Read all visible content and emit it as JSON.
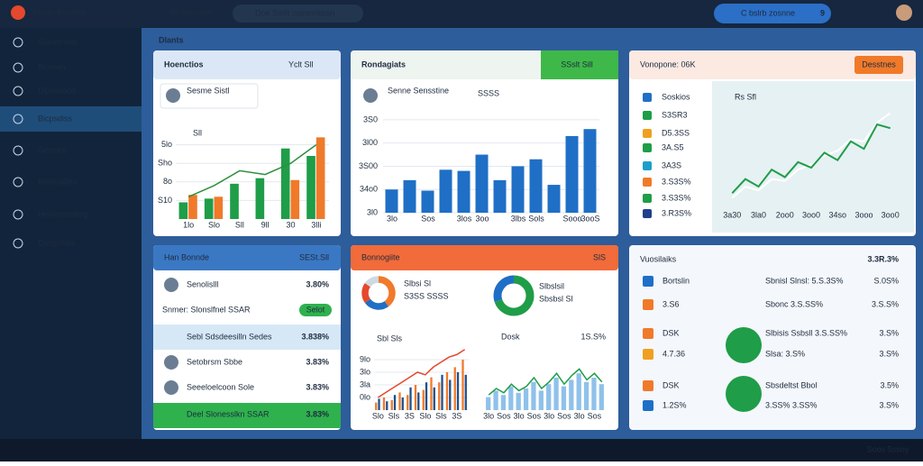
{
  "sidebar": {
    "brand": "Elsnn Bnsiics",
    "items": [
      "Slonomiuis",
      "Blornen",
      "Dipesiiood",
      "Bicpsdiss",
      "Sesnice",
      "Bosnsidies",
      "Heriassentiog",
      "Dsngstidis"
    ]
  },
  "topbar": {
    "title": "Rlomongje:",
    "search": "Doe Slbilt nsesnntsisn",
    "user": "C bslrb zosnne",
    "badge": "9"
  },
  "section": "Dlants",
  "panels": [
    {
      "title": "Hoenctios",
      "action": "Yclt Sll",
      "profile": "Sesme Sistl",
      "badge": "Sll",
      "chart": {
        "ylim": [
          0,
          50
        ],
        "yticks": [
          {
            "value": 40,
            "label": "5lo"
          },
          {
            "value": 30,
            "label": "Sho"
          },
          {
            "value": 20,
            "label": "8o"
          },
          {
            "value": 10,
            "label": "S10"
          }
        ],
        "categories": [
          "1lo",
          "Slo",
          "Sll",
          "9ll",
          "30",
          "3lli"
        ],
        "series": [
          {
            "color": "#1f9d48",
            "values": [
              9,
              11,
              19,
              22,
              38,
              34
            ]
          },
          {
            "color": "#f07a2a",
            "values": [
              13,
              12,
              null,
              null,
              21,
              44
            ]
          }
        ],
        "line": {
          "color": "#2f8f3e",
          "values": [
            12,
            18,
            26,
            24,
            30,
            40
          ]
        }
      }
    },
    {
      "title": "Rondagiats",
      "action": "SSslt Sill",
      "profile": "Senne Sensstine",
      "badge": "SSSS",
      "chart": {
        "ylim": [
          0,
          450
        ],
        "yticks": [
          {
            "value": 400,
            "label": "3S0"
          },
          {
            "value": 300,
            "label": "3l00"
          },
          {
            "value": 200,
            "label": "3S00"
          },
          {
            "value": 100,
            "label": "34o0"
          },
          {
            "value": 0,
            "label": "3l0"
          }
        ],
        "categories": [
          "3lo",
          null,
          "Sos",
          null,
          "3los",
          "3oo",
          null,
          "3lbs",
          "Sols",
          null,
          "Sooo",
          "3ooS"
        ],
        "series": [
          {
            "color": "#1f6fc6",
            "values": [
              100,
              140,
              95,
              185,
              180,
              250,
              140,
              200,
              230,
              120,
              330,
              360
            ]
          }
        ]
      }
    },
    {
      "title": "Vonopone: 06K",
      "button": "Desstnes",
      "legend": "Rs Sfl",
      "list": [
        "Soskios",
        "S3SR3",
        "D5.3SS",
        "3A.S5",
        "3A3S",
        "3.S3S%",
        "3.S3S%",
        "3.R3S%"
      ],
      "chart": {
        "ylim": [
          0,
          110
        ],
        "categories": [
          "3a30",
          null,
          "3la0",
          null,
          "2oo0",
          null,
          "3oo0",
          null,
          "34so",
          null,
          "3ooo",
          null,
          "3oo0"
        ],
        "series": [
          {
            "color": "#ffffff",
            "values": [
              10,
              22,
              18,
              30,
              28,
              40,
              45,
              55,
              60,
              72,
              70,
              90,
              100
            ]
          },
          {
            "color": "#1f9d48",
            "values": [
              15,
              30,
              22,
              40,
              32,
              48,
              42,
              58,
              50,
              70,
              62,
              88,
              84
            ]
          }
        ]
      }
    },
    {
      "title": "Han Bonnde",
      "action": "SESt.Sll",
      "rows": [
        {
          "name": "Senolislll",
          "value": "3.80%"
        },
        {
          "name": "Snmer: Slonslfnel SSAR",
          "button": "Selot"
        },
        {
          "name": "Sebl Sdsdeesilln Sedes",
          "value": "3.838%"
        },
        {
          "name": "Setobrsm Sbbe",
          "value": "3.83%"
        },
        {
          "name": "Seeeloelcoon Sole",
          "value": "3.83%"
        },
        {
          "name": "Deel Slonesslkn SSAR",
          "value": "3.83%"
        }
      ]
    },
    {
      "title": "Bonnogiite",
      "action": "SlS",
      "pie1": {
        "label": "Slbsi Sl",
        "caption": "S3SS SSSS",
        "values": [
          40,
          25,
          20,
          15
        ],
        "colors": [
          "#f07a2a",
          "#1f6fc6",
          "#e5482c",
          "#cfd8e3"
        ]
      },
      "pie2": {
        "label": "Slbslsil",
        "caption": "Sbsbsl Sl",
        "values": [
          70,
          30
        ],
        "colors": [
          "#1f9d48",
          "#1f6fc6"
        ]
      },
      "tag": "Sbl Sls",
      "note": "Dosk",
      "pct": "1S.S%",
      "chart1": {
        "ylim": [
          0,
          50
        ],
        "yticks": [
          {
            "value": 40,
            "label": "9lo"
          },
          {
            "value": 30,
            "label": "3lo"
          },
          {
            "value": 20,
            "label": "3la"
          },
          {
            "value": 10,
            "label": "0lo"
          }
        ],
        "categories": [
          "Slo",
          null,
          "Sls",
          null,
          "3S",
          null,
          "Slo",
          null,
          "Sls",
          null,
          "3S",
          null
        ],
        "series": [
          {
            "color": "#f07a2a",
            "values": [
              6,
              10,
              8,
              14,
              12,
              20,
              16,
              26,
              22,
              30,
              34,
              40
            ]
          },
          {
            "color": "#1e4f8c",
            "values": [
              9,
              7,
              12,
              10,
              18,
              14,
              22,
              18,
              28,
              24,
              30,
              28
            ]
          }
        ],
        "line": {
          "color": "#e5482c",
          "values": [
            10,
            14,
            18,
            22,
            26,
            30,
            28,
            34,
            38,
            42,
            44,
            48
          ]
        }
      },
      "chart2": {
        "ylim": [
          0,
          50
        ],
        "categories": [
          "3lo",
          null,
          "Sos",
          null,
          "3lo",
          null,
          "Sos",
          null,
          "3lo",
          null,
          "Sos",
          null,
          "3lo",
          null,
          "Sos",
          null
        ],
        "series": [
          {
            "color": "#8fc1ea",
            "values": [
              12,
              18,
              14,
              22,
              16,
              20,
              26,
              18,
              24,
              30,
              22,
              28,
              34,
              26,
              30,
              24
            ]
          }
        ],
        "line": {
          "color": "#1f9d48",
          "values": [
            14,
            20,
            16,
            24,
            18,
            22,
            30,
            20,
            26,
            34,
            24,
            32,
            38,
            28,
            34,
            26
          ]
        }
      }
    },
    {
      "title": "Vuosilaiks",
      "total": "3.3R.3%",
      "rows": [
        {
          "left": "Bortslin",
          "mid": "Sbnisl Slnsl: 5.S.3S%",
          "right": "S.0S%"
        },
        {
          "left": "3.S6",
          "mid": "Sbonc  3.S.SS%",
          "right": "3.S.S%"
        },
        {
          "left": "DSK",
          "mid": "Slbisis Ssbsll 3.S.SS%",
          "right": "3.S%"
        },
        {
          "left": "4.7.36",
          "mid": "Slsa: 3.S%",
          "right": "3.S%"
        },
        {
          "left": "DSK",
          "mid": "Sbsdeltst Bbol",
          "right": "3.5%"
        },
        {
          "left": "1.2S%",
          "mid": "3.SS%   3.SS%",
          "right": "3.S%"
        }
      ]
    }
  ],
  "taskbar": {
    "clock": "Soos 5ssoy"
  }
}
